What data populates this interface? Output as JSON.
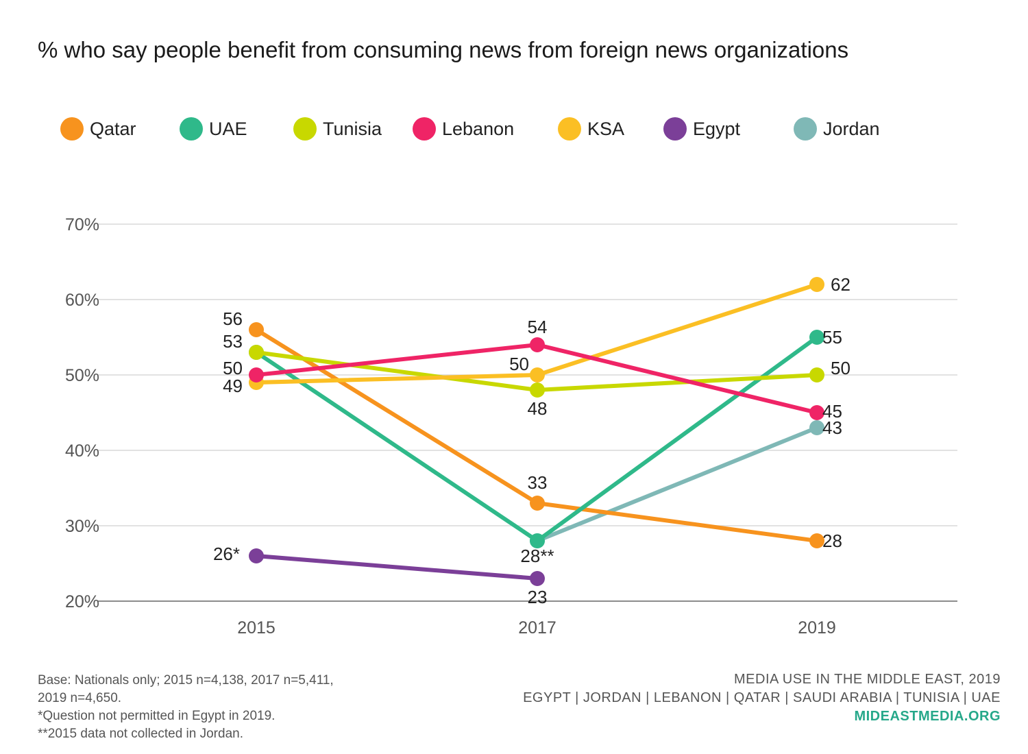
{
  "title": "% who say people benefit from consuming news from foreign news organizations",
  "footnotes": [
    "Base: Nationals only; 2015 n=4,138, 2017 n=5,411,",
    "2019 n=4,650.",
    "*Question not permitted in Egypt in 2019.",
    "**2015 data not collected in Jordan."
  ],
  "source": {
    "line1": "MEDIA USE IN THE MIDDLE EAST, 2019",
    "line2": "EGYPT | JORDAN | LEBANON | QATAR | SAUDI ARABIA | TUNISIA | UAE",
    "site": "MIDEASTMEDIA.ORG"
  },
  "chart_data": {
    "type": "line",
    "title": "% who say people benefit from consuming news from foreign news organizations",
    "x": [
      "2015",
      "2017",
      "2019"
    ],
    "ylim": [
      20,
      70
    ],
    "yticks": [
      "20%",
      "30%",
      "40%",
      "50%",
      "60%",
      "70%"
    ],
    "grid": true,
    "legend_position": "top",
    "series": [
      {
        "name": "Qatar",
        "color": "#f7931e",
        "values": [
          56,
          33,
          28
        ],
        "labels": [
          "56",
          "33",
          "28"
        ]
      },
      {
        "name": "UAE",
        "color": "#2fb98a",
        "values": [
          53,
          28,
          55
        ],
        "labels": [
          "53",
          "28**",
          "55"
        ]
      },
      {
        "name": "Tunisia",
        "color": "#c8d800",
        "values": [
          53,
          48,
          50
        ],
        "labels": [
          "",
          "48",
          "50"
        ]
      },
      {
        "name": "Lebanon",
        "color": "#ef2466",
        "values": [
          50,
          54,
          45
        ],
        "labels": [
          "50",
          "54",
          "45"
        ]
      },
      {
        "name": "KSA",
        "color": "#fbbf24",
        "values": [
          49,
          50,
          62
        ],
        "labels": [
          "49",
          "50",
          "62"
        ]
      },
      {
        "name": "Egypt",
        "color": "#7b3f98",
        "values": [
          26,
          23,
          null
        ],
        "labels": [
          "26*",
          "23",
          ""
        ]
      },
      {
        "name": "Jordan",
        "color": "#7fb8b6",
        "values": [
          null,
          28,
          43
        ],
        "labels": [
          "",
          "",
          "43"
        ]
      }
    ]
  }
}
